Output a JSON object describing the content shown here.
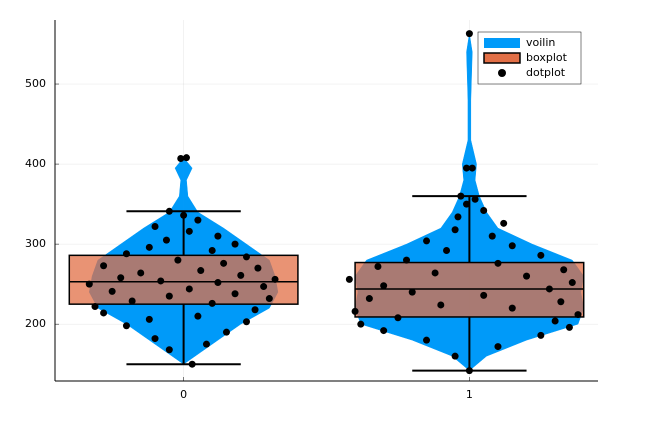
{
  "chart_data": {
    "type": "violin",
    "xlim": [
      -0.45,
      1.45
    ],
    "xticks": [
      0,
      1
    ],
    "ylim": [
      129,
      580
    ],
    "yticks": [
      200,
      300,
      400,
      500
    ],
    "grid": true,
    "legend": "top-right",
    "series": [
      {
        "name": "voilin",
        "color": "#009af9",
        "groups": [
          {
            "x": 0,
            "y": [
              150,
              165,
              180,
              200,
              220,
              240,
              260,
              280,
              300,
              320,
              340,
              360,
              380,
              395,
              408
            ],
            "width": [
              0,
              0.06,
              0.12,
              0.2,
              0.3,
              0.33,
              0.32,
              0.3,
              0.22,
              0.14,
              0.05,
              0.015,
              0.01,
              0.03,
              0
            ]
          },
          {
            "x": 1,
            "y": [
              142,
              160,
              180,
              200,
              220,
              240,
              260,
              280,
              300,
              320,
              340,
              360,
              380,
              400,
              430,
              480,
              540,
              563
            ],
            "width": [
              0,
              0.06,
              0.2,
              0.38,
              0.4,
              0.39,
              0.4,
              0.36,
              0.22,
              0.1,
              0.06,
              0.035,
              0.02,
              0.025,
              0.005,
              0.005,
              0.01,
              0
            ]
          }
        ]
      },
      {
        "name": "boxplot",
        "color": "#e26f46",
        "groups": [
          {
            "x": 0,
            "whisker_low": 150,
            "q1": 225,
            "median": 253,
            "q3": 286,
            "whisker_high": 341
          },
          {
            "x": 1,
            "whisker_low": 142,
            "q1": 209,
            "median": 244,
            "q3": 277,
            "whisker_high": 360
          }
        ]
      },
      {
        "name": "dotplot",
        "color": "#000000",
        "x": [
          0.03,
          -0.05,
          0.08,
          -0.1,
          0.15,
          -0.2,
          0.22,
          -0.12,
          0.05,
          -0.28,
          0.25,
          -0.31,
          0.1,
          -0.18,
          0.3,
          -0.05,
          0.18,
          -0.25,
          0.02,
          0.28,
          -0.33,
          0.12,
          -0.08,
          0.32,
          -0.22,
          0.2,
          -0.15,
          0.06,
          0.26,
          -0.28,
          0.14,
          -0.02,
          0.22,
          -0.2,
          0.1,
          -0.12,
          0.18,
          -0.06,
          0.12,
          0.02,
          -0.1,
          0.05,
          0.0,
          -0.05,
          -0.01,
          0.01,
          1.0,
          0.95,
          1.1,
          0.85,
          1.25,
          0.7,
          1.35,
          0.62,
          1.3,
          0.75,
          1.38,
          0.6,
          1.15,
          0.9,
          1.32,
          0.65,
          1.05,
          0.8,
          1.28,
          0.7,
          1.36,
          0.58,
          1.2,
          0.88,
          1.33,
          0.68,
          1.1,
          0.78,
          1.25,
          0.92,
          1.15,
          0.85,
          1.08,
          0.95,
          1.12,
          0.96,
          1.05,
          0.99,
          1.02,
          0.97,
          0.99,
          1.01,
          1.0
        ],
        "y": [
          150,
          168,
          175,
          182,
          190,
          198,
          203,
          206,
          210,
          214,
          218,
          222,
          226,
          229,
          232,
          235,
          238,
          241,
          244,
          247,
          250,
          252,
          254,
          256,
          258,
          261,
          264,
          267,
          270,
          273,
          276,
          280,
          284,
          288,
          292,
          296,
          300,
          305,
          310,
          316,
          322,
          330,
          336,
          341,
          407,
          408,
          142,
          160,
          172,
          180,
          186,
          192,
          196,
          200,
          204,
          208,
          212,
          216,
          220,
          224,
          228,
          232,
          236,
          240,
          244,
          248,
          252,
          256,
          260,
          264,
          268,
          272,
          276,
          280,
          286,
          292,
          298,
          304,
          310,
          318,
          326,
          334,
          342,
          350,
          356,
          360,
          395,
          395,
          563
        ]
      }
    ]
  }
}
